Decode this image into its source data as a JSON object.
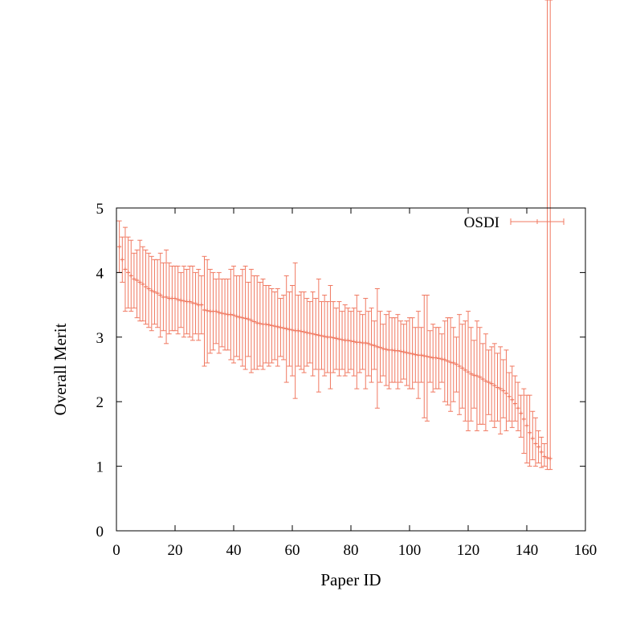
{
  "chart_data": {
    "type": "scatter",
    "title": "",
    "xlabel": "Paper ID",
    "ylabel": "Overall Merit",
    "xlim": [
      0,
      160
    ],
    "ylim": [
      0,
      5
    ],
    "xticks": [
      0,
      20,
      40,
      60,
      80,
      100,
      120,
      140,
      160
    ],
    "yticks": [
      0,
      1,
      2,
      3,
      4,
      5
    ],
    "grid": false,
    "legend_position": "top-right",
    "series_color": "#f07860",
    "series": [
      {
        "name": "OSDI",
        "x": [
          1,
          2,
          3,
          4,
          5,
          6,
          7,
          8,
          9,
          10,
          11,
          12,
          13,
          14,
          15,
          16,
          17,
          18,
          19,
          20,
          21,
          22,
          23,
          24,
          25,
          26,
          27,
          28,
          29,
          30,
          31,
          32,
          33,
          34,
          35,
          36,
          37,
          38,
          39,
          40,
          41,
          42,
          43,
          44,
          45,
          46,
          47,
          48,
          49,
          50,
          51,
          52,
          53,
          54,
          55,
          56,
          57,
          58,
          59,
          60,
          61,
          62,
          63,
          64,
          65,
          66,
          67,
          68,
          69,
          70,
          71,
          72,
          73,
          74,
          75,
          76,
          77,
          78,
          79,
          80,
          81,
          82,
          83,
          84,
          85,
          86,
          87,
          88,
          89,
          90,
          91,
          92,
          93,
          94,
          95,
          96,
          97,
          98,
          99,
          100,
          101,
          102,
          103,
          104,
          105,
          106,
          107,
          108,
          109,
          110,
          111,
          112,
          113,
          114,
          115,
          116,
          117,
          118,
          119,
          120,
          121,
          122,
          123,
          124,
          125,
          126,
          127,
          128,
          129,
          130,
          131,
          132,
          133,
          134,
          135,
          136,
          137,
          138,
          139,
          140,
          141,
          142,
          143,
          144,
          145,
          146,
          147,
          148
        ],
        "y": [
          4.4,
          4.2,
          4.05,
          4.0,
          3.95,
          3.9,
          3.88,
          3.85,
          3.82,
          3.78,
          3.75,
          3.72,
          3.7,
          3.68,
          3.65,
          3.62,
          3.62,
          3.6,
          3.6,
          3.6,
          3.58,
          3.57,
          3.56,
          3.55,
          3.55,
          3.53,
          3.52,
          3.5,
          3.5,
          3.42,
          3.41,
          3.4,
          3.4,
          3.4,
          3.38,
          3.37,
          3.36,
          3.35,
          3.35,
          3.34,
          3.32,
          3.31,
          3.3,
          3.29,
          3.28,
          3.26,
          3.24,
          3.22,
          3.21,
          3.2,
          3.2,
          3.19,
          3.18,
          3.17,
          3.16,
          3.15,
          3.14,
          3.13,
          3.12,
          3.11,
          3.1,
          3.1,
          3.09,
          3.08,
          3.07,
          3.06,
          3.05,
          3.04,
          3.03,
          3.02,
          3.01,
          3.0,
          3.0,
          2.99,
          2.98,
          2.97,
          2.96,
          2.95,
          2.95,
          2.94,
          2.93,
          2.92,
          2.92,
          2.91,
          2.91,
          2.9,
          2.88,
          2.87,
          2.85,
          2.84,
          2.82,
          2.81,
          2.8,
          2.8,
          2.79,
          2.79,
          2.78,
          2.77,
          2.76,
          2.75,
          2.74,
          2.73,
          2.72,
          2.72,
          2.71,
          2.7,
          2.69,
          2.68,
          2.68,
          2.67,
          2.66,
          2.65,
          2.63,
          2.61,
          2.6,
          2.58,
          2.55,
          2.52,
          2.49,
          2.46,
          2.43,
          2.41,
          2.4,
          2.38,
          2.35,
          2.32,
          2.3,
          2.28,
          2.25,
          2.22,
          2.2,
          2.17,
          2.13,
          2.08,
          2.03,
          1.97,
          1.9,
          1.82,
          1.73,
          1.63,
          1.52,
          1.43,
          1.35,
          1.3,
          1.22,
          1.15,
          1.13,
          1.12
        ],
        "yerr_low": [
          4.0,
          3.85,
          3.4,
          3.45,
          3.4,
          3.45,
          3.3,
          3.25,
          3.25,
          3.2,
          3.15,
          3.1,
          3.2,
          3.15,
          3.0,
          3.1,
          2.9,
          3.05,
          3.1,
          3.1,
          3.05,
          3.15,
          3.0,
          3.05,
          3.0,
          2.95,
          3.05,
          2.95,
          3.05,
          2.55,
          2.6,
          2.75,
          2.8,
          2.9,
          2.75,
          2.85,
          2.8,
          2.8,
          2.65,
          2.6,
          2.7,
          2.65,
          2.55,
          2.5,
          2.7,
          2.45,
          2.5,
          2.5,
          2.55,
          2.5,
          2.6,
          2.55,
          2.6,
          2.65,
          2.55,
          2.7,
          2.65,
          2.3,
          2.55,
          2.4,
          2.05,
          2.55,
          2.5,
          2.45,
          2.55,
          2.6,
          2.4,
          2.5,
          2.15,
          2.5,
          2.4,
          2.45,
          2.2,
          2.45,
          2.5,
          2.4,
          2.5,
          2.4,
          2.45,
          2.5,
          2.4,
          2.2,
          2.45,
          2.5,
          2.2,
          2.4,
          2.3,
          2.5,
          1.9,
          2.3,
          2.4,
          2.25,
          2.2,
          2.3,
          2.3,
          2.2,
          2.3,
          2.35,
          2.25,
          2.2,
          2.2,
          2.3,
          2.05,
          2.3,
          1.75,
          1.7,
          2.3,
          2.15,
          2.2,
          2.2,
          2.3,
          2.0,
          1.95,
          1.85,
          2.0,
          2.15,
          1.8,
          1.9,
          1.7,
          1.55,
          1.7,
          1.9,
          1.55,
          1.65,
          1.65,
          1.55,
          1.8,
          1.7,
          1.6,
          1.7,
          1.5,
          1.75,
          1.55,
          1.7,
          1.6,
          1.7,
          1.55,
          1.45,
          1.2,
          1.05,
          1.0,
          1.1,
          1.0,
          1.05,
          0.98,
          1.0,
          0.95,
          0.95
        ],
        "yerr_high": [
          4.8,
          4.55,
          4.7,
          4.55,
          4.5,
          4.3,
          4.35,
          4.5,
          4.4,
          4.35,
          4.3,
          4.25,
          4.2,
          4.2,
          4.3,
          4.15,
          4.35,
          4.15,
          4.1,
          4.1,
          4.1,
          4.0,
          4.1,
          4.05,
          4.1,
          4.1,
          4.0,
          4.05,
          3.95,
          4.25,
          4.2,
          4.05,
          4.0,
          3.9,
          4.0,
          3.9,
          3.9,
          3.9,
          4.05,
          4.1,
          3.95,
          3.95,
          4.05,
          4.1,
          3.85,
          4.05,
          3.95,
          3.95,
          3.85,
          3.9,
          3.8,
          3.8,
          3.75,
          3.7,
          3.75,
          3.6,
          3.65,
          3.95,
          3.7,
          3.8,
          4.15,
          3.65,
          3.7,
          3.7,
          3.6,
          3.55,
          3.7,
          3.6,
          3.9,
          3.55,
          3.65,
          3.55,
          3.8,
          3.55,
          3.45,
          3.55,
          3.4,
          3.5,
          3.45,
          3.4,
          3.45,
          3.65,
          3.4,
          3.35,
          3.6,
          3.4,
          3.45,
          3.25,
          3.75,
          3.4,
          3.2,
          3.35,
          3.4,
          3.3,
          3.3,
          3.35,
          3.25,
          3.2,
          3.25,
          3.3,
          3.3,
          3.15,
          3.4,
          3.15,
          3.65,
          3.65,
          3.1,
          3.2,
          3.15,
          3.15,
          3.05,
          3.25,
          3.3,
          3.3,
          3.15,
          3.0,
          3.35,
          3.2,
          3.25,
          3.4,
          3.15,
          2.95,
          3.25,
          3.15,
          2.9,
          3.05,
          2.8,
          2.85,
          2.9,
          2.75,
          2.85,
          2.65,
          2.8,
          2.45,
          2.55,
          2.4,
          2.3,
          2.1,
          2.2,
          2.1,
          2.1,
          1.85,
          1.75,
          1.55,
          1.45,
          1.35
        ]
      }
    ]
  }
}
